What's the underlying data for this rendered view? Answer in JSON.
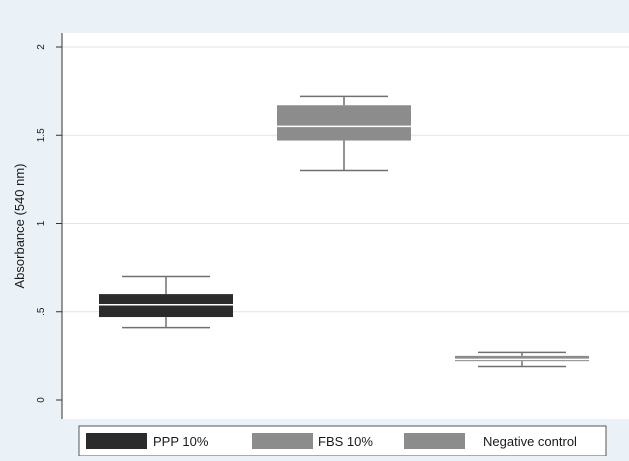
{
  "chart_data": {
    "type": "boxplot",
    "ylabel": "Absorbance (540 nm)",
    "ylim": [
      0,
      2
    ],
    "yticks": [
      {
        "value": 0,
        "label": "0"
      },
      {
        "value": 0.5,
        "label": ".5"
      },
      {
        "value": 1,
        "label": "1"
      },
      {
        "value": 1.5,
        "label": "1.5"
      },
      {
        "value": 2,
        "label": "2"
      }
    ],
    "grid": true,
    "legend_position": "bottom",
    "series": [
      {
        "name": "PPP 10%",
        "color": "#2b2b2b",
        "min": 0.41,
        "q1": 0.47,
        "median": 0.54,
        "q3": 0.6,
        "max": 0.7
      },
      {
        "name": "FBS 10%",
        "color": "#8c8c8c",
        "min": 1.3,
        "q1": 1.47,
        "median": 1.55,
        "q3": 1.67,
        "max": 1.72
      },
      {
        "name": "Negative control",
        "color": "#8c8c8c",
        "min": 0.19,
        "q1": 0.22,
        "median": 0.23,
        "q3": 0.25,
        "max": 0.27
      }
    ]
  }
}
